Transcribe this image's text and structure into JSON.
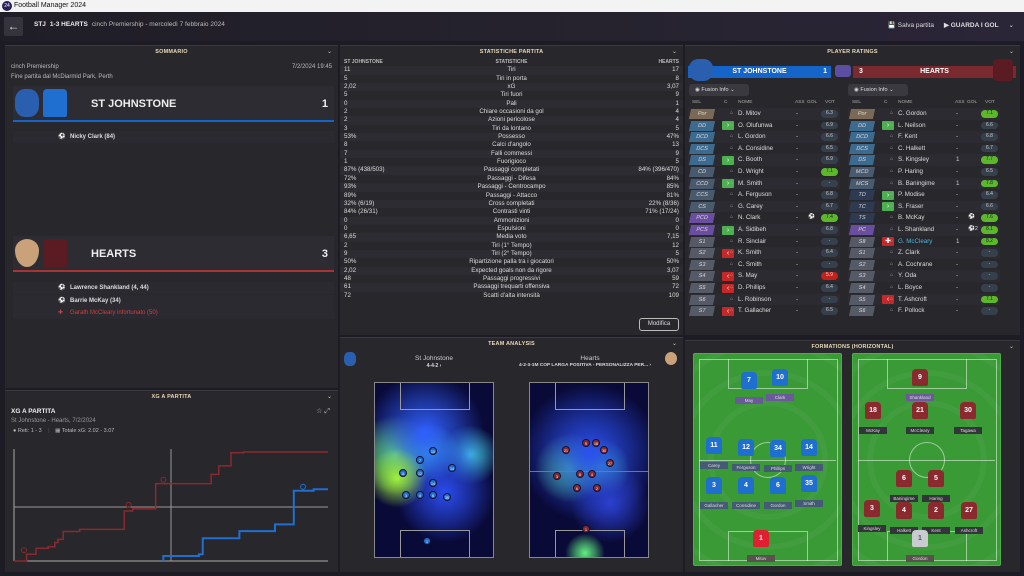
{
  "app": {
    "title": "Football Manager 2024",
    "logo": "24"
  },
  "header": {
    "home_abbr": "STJ",
    "score": "1-3 HEARTS",
    "competition_date": "cinch Premiership - mercoledì 7 febbraio 2024",
    "save": "Salva partita",
    "watch": "GUARDA I GOL"
  },
  "summary": {
    "title": "SOMMARIO",
    "competition": "cinch Premiership",
    "datetime": "7/2/2024 19:45",
    "venue": "Fine partita dal McDiarmid Park, Perth",
    "home": {
      "name": "ST JOHNSTONE",
      "score": "1",
      "events": [
        {
          "icon": "goal-icon",
          "text": "Nicky Clark (84)"
        }
      ]
    },
    "away": {
      "name": "HEARTS",
      "score": "3",
      "events": [
        {
          "icon": "goal-icon",
          "text": "Lawrence Shankland (4, 44)"
        },
        {
          "icon": "goal-icon",
          "text": "Barrie McKay (34)"
        },
        {
          "icon": "injury-icon",
          "text": "Garath McCleary infortunato (50)"
        }
      ]
    }
  },
  "colors": {
    "home": "#1565c8",
    "away": "#8a2a2e",
    "accent": "#e8d9b8",
    "good": "#5cb82a",
    "bad": "#c0231c"
  },
  "stats": {
    "title": "STATISTICHE PARTITA",
    "col_home": "ST JOHNSTONE",
    "col_stat": "STATISTICHE",
    "col_away": "HEARTS",
    "edit": "Modifica",
    "rows": [
      [
        "11",
        "Tiri",
        "17"
      ],
      [
        "5",
        "Tiri in porta",
        "8"
      ],
      [
        "2,02",
        "xG",
        "3,07"
      ],
      [
        "5",
        "Tiri fuori",
        "9"
      ],
      [
        "0",
        "Pali",
        "1"
      ],
      [
        "2",
        "Chiare occasioni da gol",
        "4"
      ],
      [
        "2",
        "Azioni pericolose",
        "4"
      ],
      [
        "3",
        "Tiri da lontano",
        "5"
      ],
      [
        "53%",
        "Possesso",
        "47%"
      ],
      [
        "8",
        "Calci d'angolo",
        "13"
      ],
      [
        "7",
        "Falli commessi",
        "9"
      ],
      [
        "1",
        "Fuorigioco",
        "5"
      ],
      [
        "87% (438/503)",
        "Passaggi completati",
        "84% (396/470)"
      ],
      [
        "72%",
        "Passaggi - Difesa",
        "84%"
      ],
      [
        "93%",
        "Passaggi - Centrocampo",
        "85%"
      ],
      [
        "89%",
        "Passaggi - Attacco",
        "81%"
      ],
      [
        "32% (6/19)",
        "Cross completati",
        "22% (8/36)"
      ],
      [
        "84% (26/31)",
        "Contrasti vinti",
        "71% (17/24)"
      ],
      [
        "0",
        "Ammonizioni",
        "0"
      ],
      [
        "0",
        "Espulsioni",
        "0"
      ],
      [
        "6,65",
        "Media voto",
        "7,15"
      ],
      [
        "2",
        "Tiri (1° Tempo)",
        "12"
      ],
      [
        "9",
        "Tiri (2° Tempo)",
        "5"
      ],
      [
        "50%",
        "Ripartizione palla tra i giocatori",
        "50%"
      ],
      [
        "2,02",
        "Expected goals non da rigore",
        "3,07"
      ],
      [
        "48",
        "Passaggi progressivi",
        "59"
      ],
      [
        "61",
        "Passaggi trequarti offensiva",
        "72"
      ],
      [
        "72",
        "Scatti d'alta intensità",
        "109"
      ]
    ]
  },
  "ratings": {
    "title": "PLAYER RATINGS",
    "view": "Fusion Info",
    "cols": [
      "SEL",
      "C",
      "NOME",
      "ASS",
      "GOL",
      "VOT"
    ],
    "home": {
      "name": "ST JOHNSTONE",
      "score": "1",
      "players": [
        [
          "Por",
          "",
          "D. Mitov",
          "-",
          "",
          "6.3"
        ],
        [
          "DD",
          "up",
          "O. Olufunwa",
          "-",
          "",
          "6.9"
        ],
        [
          "DCD",
          "",
          "L. Gordon",
          "-",
          "",
          "6.6"
        ],
        [
          "DCS",
          "",
          "A. Considine",
          "-",
          "",
          "6.5"
        ],
        [
          "DS",
          "up",
          "C. Booth",
          "-",
          "",
          "6.9"
        ],
        [
          "CD",
          "",
          "D. Wright",
          "-",
          "",
          "7.1"
        ],
        [
          "CCD",
          "up",
          "M. Smith",
          "-",
          "",
          "-"
        ],
        [
          "CCS",
          "",
          "A. Ferguson",
          "-",
          "",
          "6.8"
        ],
        [
          "CS",
          "",
          "G. Carey",
          "-",
          "",
          "6.7"
        ],
        [
          "PCD",
          "",
          "N. Clark",
          "-",
          "⚽",
          "7.4"
        ],
        [
          "PCS",
          "up",
          "A. Sidibeh",
          "-",
          "",
          "6.8"
        ],
        [
          "S1",
          "",
          "R. Sinclair",
          "-",
          "",
          "-"
        ],
        [
          "S2",
          "down",
          "K. Smith",
          "-",
          "",
          "6.4"
        ],
        [
          "S3",
          "",
          "C. Smith",
          "-",
          "",
          "-"
        ],
        [
          "S4",
          "down",
          "S. May",
          "-",
          "",
          "5.9"
        ],
        [
          "S5",
          "down",
          "D. Phillips",
          "-",
          "",
          "6.4"
        ],
        [
          "S6",
          "",
          "L. Robinson",
          "-",
          "",
          "-"
        ],
        [
          "S7",
          "down",
          "T. Gallacher",
          "-",
          "",
          "6.5"
        ]
      ]
    },
    "away": {
      "name": "HEARTS",
      "score": "3",
      "players": [
        [
          "Por",
          "",
          "C. Gordon",
          "-",
          "",
          "7.1"
        ],
        [
          "DD",
          "up",
          "L. Neilson",
          "-",
          "",
          "6.6"
        ],
        [
          "DCD",
          "",
          "F. Kent",
          "-",
          "",
          "6.8"
        ],
        [
          "DCS",
          "",
          "C. Halkett",
          "-",
          "",
          "6.7"
        ],
        [
          "DS",
          "",
          "S. Kingsley",
          "1",
          "",
          "7.7"
        ],
        [
          "MCD",
          "",
          "P. Haring",
          "-",
          "",
          "6.5"
        ],
        [
          "MCS",
          "",
          "B. Baningime",
          "1",
          "",
          "7.8"
        ],
        [
          "TD",
          "up",
          "P. Modise",
          "-",
          "",
          "6.4"
        ],
        [
          "TC",
          "up",
          "S. Fraser",
          "-",
          "",
          "6.6"
        ],
        [
          "TS",
          "",
          "B. McKay",
          "-",
          "⚽",
          "7.6"
        ],
        [
          "PC",
          "",
          "L. Shankland",
          "-",
          "⚽2",
          "8.1"
        ],
        [
          "S8",
          "inj",
          "G. McCleary",
          "1",
          "",
          "8.2"
        ],
        [
          "S1",
          "",
          "Z. Clark",
          "-",
          "",
          "-"
        ],
        [
          "S2",
          "",
          "A. Cochrane",
          "-",
          "",
          "-"
        ],
        [
          "S3",
          "",
          "Y. Oda",
          "-",
          "",
          "-"
        ],
        [
          "S4",
          "",
          "L. Boyce",
          "-",
          "",
          "-"
        ],
        [
          "S5",
          "down",
          "T. Ashcroft",
          "-",
          "",
          "7.1"
        ],
        [
          "S6",
          "",
          "F. Pollock",
          "-",
          "",
          "-"
        ]
      ]
    }
  },
  "xg": {
    "panel_title": "XG A PARTITA",
    "title": "XG A PARTITA",
    "subtitle": "St Johnstone - Hearts, 7/2/2024",
    "result": "Reti: 1 - 3",
    "total": "Totale xG: 2.02 - 3.07"
  },
  "chart_data": {
    "type": "line",
    "title": "XG A PARTITA",
    "xlabel": "minute",
    "ylabel": "cumulative xG",
    "xlim": [
      0,
      90
    ],
    "ylim": [
      0,
      3.2
    ],
    "series": [
      {
        "name": "Hearts",
        "color": "#8a2a2e",
        "steps": [
          [
            0,
            0
          ],
          [
            3.6,
            0.19
          ],
          [
            6.3,
            0.36
          ],
          [
            9.8,
            0.4
          ],
          [
            11.7,
            0.52
          ],
          [
            12.6,
            0.61
          ],
          [
            14.1,
            0.83
          ],
          [
            18.8,
            0.89
          ],
          [
            31.6,
            1.41
          ],
          [
            34,
            1.47
          ],
          [
            40.6,
            2.18
          ],
          [
            56.5,
            2.44
          ],
          [
            58.7,
            2.68
          ],
          [
            62.2,
            3.05
          ],
          [
            65.8,
            3.07
          ],
          [
            90,
            3.07
          ]
        ],
        "goals": [
          4,
          34,
          44
        ]
      },
      {
        "name": "St Johnstone",
        "color": "#1f6fd1",
        "steps": [
          [
            42.8,
            0
          ],
          [
            42.8,
            0.14
          ],
          [
            53,
            0.19
          ],
          [
            54.1,
            0.64
          ],
          [
            64.6,
            0.84
          ],
          [
            74.8,
            1.03
          ],
          [
            80.2,
            1.98
          ],
          [
            85.9,
            2.02
          ],
          [
            90,
            2.02
          ]
        ],
        "goals": [
          84
        ]
      }
    ]
  },
  "analysis": {
    "title": "TEAM ANALYSIS",
    "home": {
      "name": "St Johnstone",
      "formation": "4-4-2 ›",
      "markers": [
        "7",
        "11",
        "12",
        "10",
        "14",
        "14",
        "3",
        "4",
        "6",
        "35",
        "1"
      ]
    },
    "away": {
      "name": "Hearts",
      "formation": "4-2-3-1M COP LARGA POSITIVA - PERSONALIZZA PER... ›",
      "markers": [
        "9",
        "21",
        "18",
        "30",
        "8",
        "27",
        "3",
        "6",
        "4",
        "2",
        "1"
      ]
    }
  },
  "formations": {
    "title": "FORMATIONS (HORIZONTAL)",
    "home": [
      [
        "7",
        "May"
      ],
      [
        "10",
        "Clark"
      ],
      [
        "11",
        "Carey"
      ],
      [
        "12",
        "Ferguson"
      ],
      [
        "34",
        "Phillips"
      ],
      [
        "14",
        "Wright"
      ],
      [
        "3",
        "Gallacher"
      ],
      [
        "4",
        "Considine"
      ],
      [
        "6",
        "Gordon"
      ],
      [
        "35",
        "Smith"
      ],
      [
        "1",
        "Mitov"
      ]
    ],
    "away": [
      [
        "9",
        "Shankland"
      ],
      [
        "18",
        "McKay"
      ],
      [
        "21",
        "McCleary"
      ],
      [
        "30",
        "Tagawa"
      ],
      [
        "6",
        "Baningime"
      ],
      [
        "5",
        "Haring"
      ],
      [
        "3",
        "Kingsley"
      ],
      [
        "4",
        "Halkett"
      ],
      [
        "2",
        "Kent"
      ],
      [
        "27",
        "Ashcroft"
      ],
      [
        "1",
        "Gordon"
      ]
    ]
  }
}
